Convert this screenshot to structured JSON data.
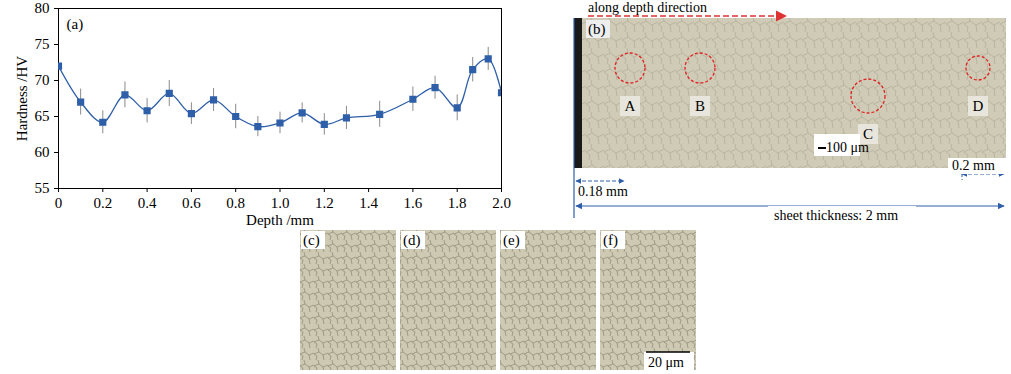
{
  "chart_data": {
    "type": "line",
    "annotations": [
      "(a)"
    ],
    "x_label": "Depth /mm",
    "y_label": "Hardness /HV",
    "x": [
      0,
      0.1,
      0.2,
      0.3,
      0.4,
      0.5,
      0.6,
      0.7,
      0.8,
      0.9,
      1.0,
      1.1,
      1.2,
      1.3,
      1.45,
      1.6,
      1.7,
      1.8,
      1.87,
      1.94,
      2.0
    ],
    "values": [
      72,
      67,
      64.2,
      68,
      65.8,
      68.2,
      65.4,
      67.3,
      65,
      63.6,
      64.1,
      65.5,
      63.9,
      64.8,
      65.3,
      67.4,
      69,
      66.2,
      71.5,
      73,
      68.3
    ],
    "errors": [
      null,
      1.8,
      1.6,
      1.8,
      1.7,
      1.8,
      1.5,
      1.6,
      1.7,
      1.4,
      1.5,
      1.4,
      1.5,
      1.6,
      1.8,
      1.7,
      1.6,
      1.8,
      1.7,
      1.6,
      null
    ],
    "color": "#2e5fa8",
    "marker": "square",
    "line_style": "solid",
    "xlim": [
      0,
      2.0
    ],
    "ylim": [
      55,
      80
    ],
    "xticks": [
      0,
      0.2,
      0.4,
      0.6,
      0.8,
      {
        "value": 1,
        "label": "1.0"
      },
      1.2,
      1.4,
      1.6,
      1.8,
      {
        "value": 2,
        "label": "2.0"
      }
    ],
    "yticks": [
      55,
      60,
      65,
      70,
      75,
      80
    ],
    "grid": false
  },
  "micrographs": {
    "b": {
      "label": "(b)",
      "arrow_text": "along depth direction",
      "regions": [
        "A",
        "B",
        "C",
        "D"
      ],
      "left_width": "0.18 mm",
      "right_width": "0.2 mm",
      "thickness": "sheet thickness: 2 mm",
      "scale_bar": "100 μm"
    },
    "details": {
      "labels": [
        "(c)",
        "(d)",
        "(e)",
        "(f)"
      ],
      "scale_bar": "20 μm"
    }
  }
}
